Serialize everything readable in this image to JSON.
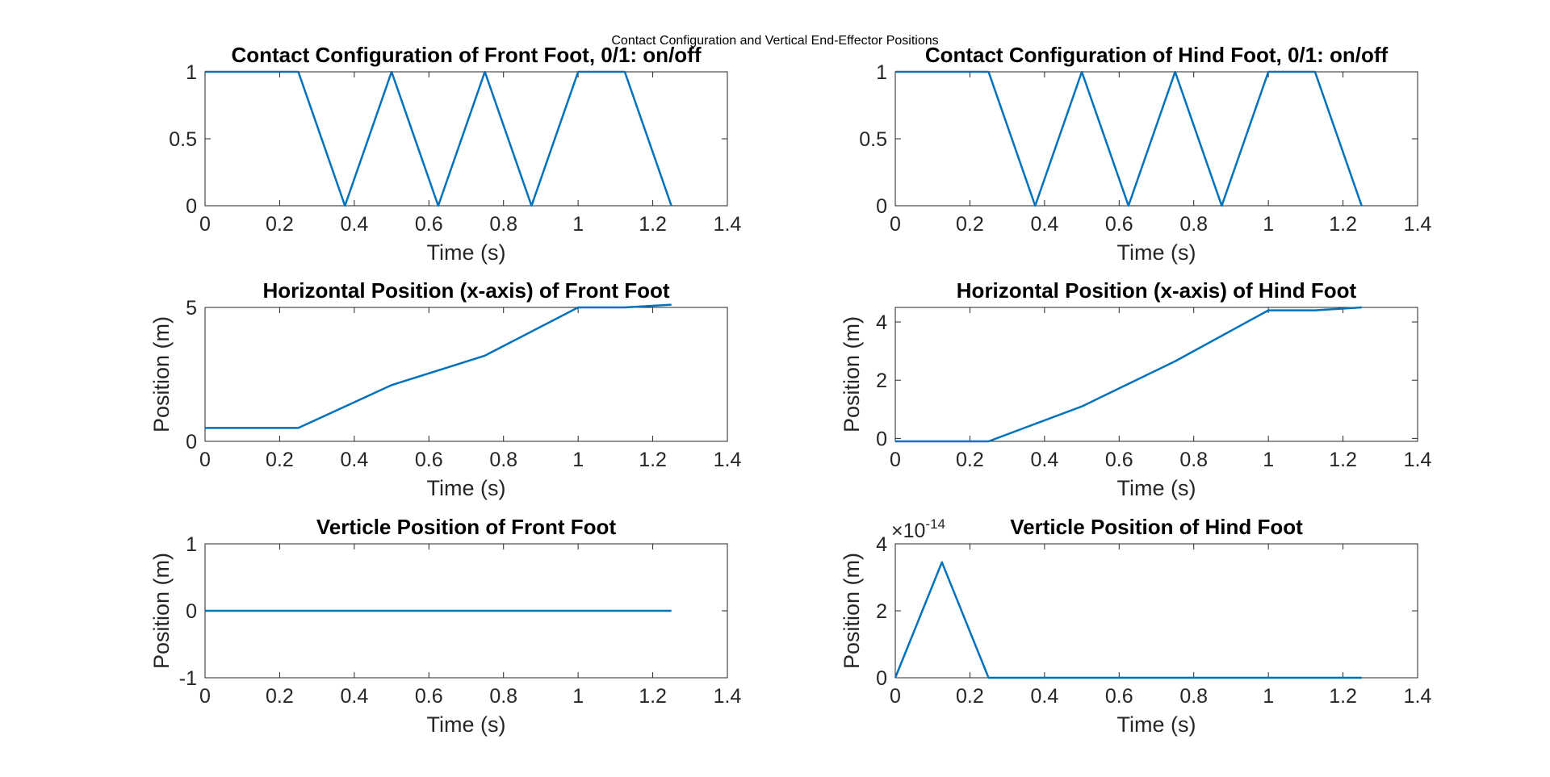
{
  "figure": {
    "suptitle": "Contact Configuration and Vertical End-Effector Positions",
    "series_color": "#0072BD"
  },
  "chart_data": [
    {
      "type": "line",
      "title": "Contact Configuration of Front Foot, 0/1: on/off",
      "xlabel": "Time (s)",
      "ylabel": "",
      "xlim": [
        0,
        1.4
      ],
      "ylim": [
        0,
        1
      ],
      "xticks": [
        0,
        0.2,
        0.4,
        0.6,
        0.8,
        1,
        1.2,
        1.4
      ],
      "xtick_labels": [
        "0",
        "0.2",
        "0.4",
        "0.6",
        "0.8",
        "1",
        "1.2",
        "1.4"
      ],
      "yticks": [
        0,
        0.5,
        1
      ],
      "ytick_labels": [
        "0",
        "0.5",
        "1"
      ],
      "series": [
        {
          "x": [
            0,
            0.25,
            0.375,
            0.5,
            0.625,
            0.75,
            0.875,
            1.0,
            1.125,
            1.25
          ],
          "y": [
            1,
            1,
            0,
            1,
            0,
            1,
            0,
            1,
            1,
            0
          ]
        }
      ]
    },
    {
      "type": "line",
      "title": "Contact Configuration of Hind Foot, 0/1: on/off",
      "xlabel": "Time (s)",
      "ylabel": "",
      "xlim": [
        0,
        1.4
      ],
      "ylim": [
        0,
        1
      ],
      "xticks": [
        0,
        0.2,
        0.4,
        0.6,
        0.8,
        1,
        1.2,
        1.4
      ],
      "xtick_labels": [
        "0",
        "0.2",
        "0.4",
        "0.6",
        "0.8",
        "1",
        "1.2",
        "1.4"
      ],
      "yticks": [
        0,
        0.5,
        1
      ],
      "ytick_labels": [
        "0",
        "0.5",
        "1"
      ],
      "series": [
        {
          "x": [
            0,
            0.25,
            0.375,
            0.5,
            0.625,
            0.75,
            0.875,
            1.0,
            1.125,
            1.25
          ],
          "y": [
            1,
            1,
            0,
            1,
            0,
            1,
            0,
            1,
            1,
            0
          ]
        }
      ]
    },
    {
      "type": "line",
      "title": "Horizontal Position (x-axis) of Front Foot",
      "xlabel": "Time (s)",
      "ylabel": "Position (m)",
      "xlim": [
        0,
        1.4
      ],
      "ylim": [
        0,
        5
      ],
      "xticks": [
        0,
        0.2,
        0.4,
        0.6,
        0.8,
        1,
        1.2,
        1.4
      ],
      "xtick_labels": [
        "0",
        "0.2",
        "0.4",
        "0.6",
        "0.8",
        "1",
        "1.2",
        "1.4"
      ],
      "yticks": [
        0,
        5
      ],
      "ytick_labels": [
        "0",
        "5"
      ],
      "series": [
        {
          "x": [
            0,
            0.25,
            0.5,
            0.75,
            1.0,
            1.125,
            1.25
          ],
          "y": [
            0.5,
            0.5,
            2.1,
            3.2,
            5.0,
            5.0,
            5.1
          ]
        }
      ]
    },
    {
      "type": "line",
      "title": "Horizontal Position (x-axis) of Hind Foot",
      "xlabel": "Time (s)",
      "ylabel": "Position (m)",
      "xlim": [
        0,
        1.4
      ],
      "ylim": [
        -0.1,
        4.5
      ],
      "xticks": [
        0,
        0.2,
        0.4,
        0.6,
        0.8,
        1,
        1.2,
        1.4
      ],
      "xtick_labels": [
        "0",
        "0.2",
        "0.4",
        "0.6",
        "0.8",
        "1",
        "1.2",
        "1.4"
      ],
      "yticks": [
        0,
        2,
        4
      ],
      "ytick_labels": [
        "0",
        "2",
        "4"
      ],
      "series": [
        {
          "x": [
            0,
            0.25,
            0.5,
            0.75,
            1.0,
            1.125,
            1.25
          ],
          "y": [
            -0.1,
            -0.1,
            1.1,
            2.65,
            4.4,
            4.4,
            4.5
          ]
        }
      ]
    },
    {
      "type": "line",
      "title": "Verticle Position of Front Foot",
      "xlabel": "Time (s)",
      "ylabel": "Position (m)",
      "xlim": [
        0,
        1.4
      ],
      "ylim": [
        -1,
        1
      ],
      "xticks": [
        0,
        0.2,
        0.4,
        0.6,
        0.8,
        1,
        1.2,
        1.4
      ],
      "xtick_labels": [
        "0",
        "0.2",
        "0.4",
        "0.6",
        "0.8",
        "1",
        "1.2",
        "1.4"
      ],
      "yticks": [
        -1,
        0,
        1
      ],
      "ytick_labels": [
        "-1",
        "0",
        "1"
      ],
      "series": [
        {
          "x": [
            0,
            1.25
          ],
          "y": [
            0,
            0
          ]
        }
      ]
    },
    {
      "type": "line",
      "title": "Verticle Position of Hind Foot",
      "xlabel": "Time (s)",
      "ylabel": "Position (m)",
      "xlim": [
        0,
        1.4
      ],
      "ylim": [
        0,
        4
      ],
      "xticks": [
        0,
        0.2,
        0.4,
        0.6,
        0.8,
        1,
        1.2,
        1.4
      ],
      "xtick_labels": [
        "0",
        "0.2",
        "0.4",
        "0.6",
        "0.8",
        "1",
        "1.2",
        "1.4"
      ],
      "yticks": [
        0,
        2,
        4
      ],
      "ytick_labels": [
        "0",
        "2",
        "4"
      ],
      "y_exponent": {
        "base": "×10",
        "power": "-14"
      },
      "series": [
        {
          "x": [
            0,
            0.125,
            0.25,
            1.25
          ],
          "y": [
            0,
            3.45,
            0,
            0
          ]
        }
      ]
    }
  ]
}
